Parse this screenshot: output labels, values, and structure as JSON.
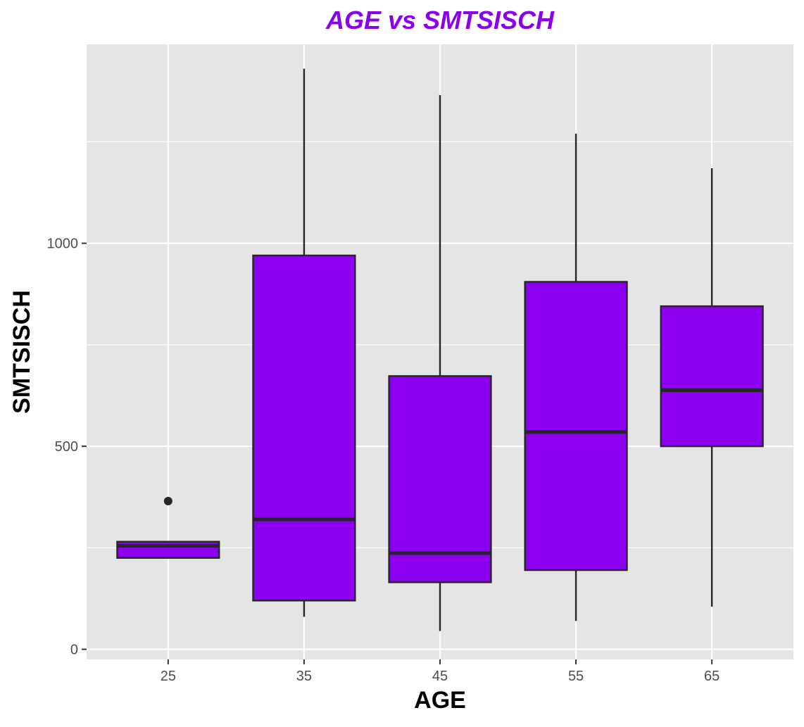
{
  "chart_data": {
    "type": "box",
    "title": "AGE vs SMTSISCH",
    "xlabel": "AGE",
    "ylabel": "SMTSISCH",
    "categories": [
      "25",
      "35",
      "45",
      "55",
      "65"
    ],
    "ylim": [
      -25,
      1490
    ],
    "yticks": [
      0,
      500,
      1000
    ],
    "ytick_labels": [
      "0",
      "500",
      "1000"
    ],
    "grid": true,
    "boxes": [
      {
        "category": "25",
        "min": 225,
        "q1": 225,
        "median": 255,
        "q3": 265,
        "max": 265,
        "outliers": [
          365
        ]
      },
      {
        "category": "35",
        "min": 80,
        "q1": 120,
        "median": 320,
        "q3": 970,
        "max": 1430,
        "outliers": []
      },
      {
        "category": "45",
        "min": 45,
        "q1": 165,
        "median": 237,
        "q3": 673,
        "max": 1365,
        "outliers": []
      },
      {
        "category": "55",
        "min": 70,
        "q1": 195,
        "median": 535,
        "q3": 905,
        "max": 1270,
        "outliers": []
      },
      {
        "category": "65",
        "min": 105,
        "q1": 500,
        "median": 638,
        "q3": 845,
        "max": 1185,
        "outliers": []
      }
    ],
    "colors": {
      "fill": "#8B00EE",
      "stroke": "#262626",
      "panel": "#E5E5E5",
      "grid": "#FFFFFF",
      "title": "#8B00EE",
      "axis_text": "#4d4d4d",
      "axis_title": "#000000"
    }
  }
}
